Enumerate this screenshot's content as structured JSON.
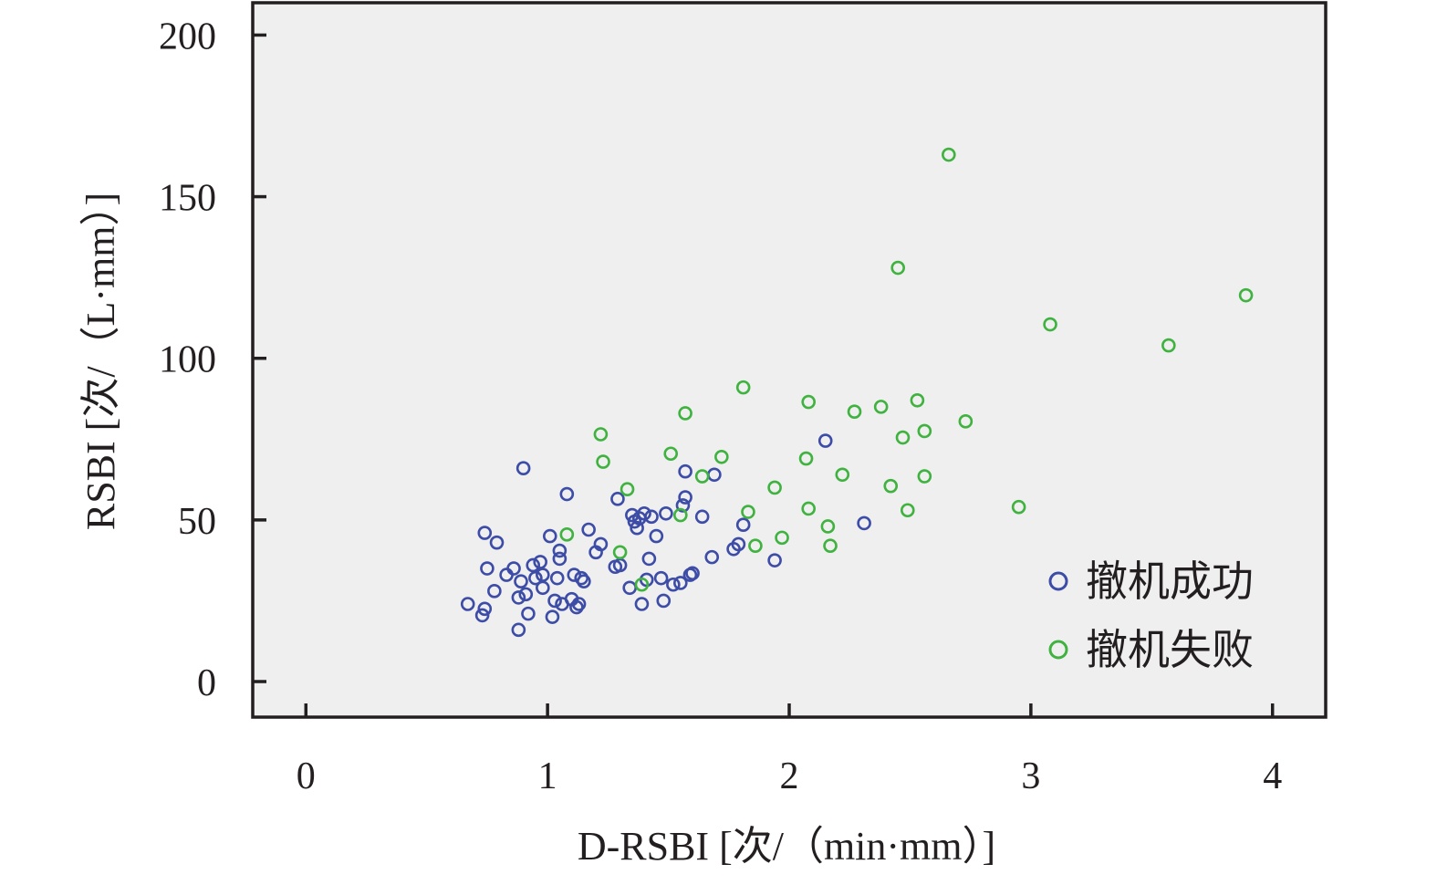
{
  "chart_data": {
    "type": "scatter",
    "xlabel": "D-RSBI [次/（min·mm）]",
    "ylabel": "RSBI [次/（L·mm）]",
    "xlim": [
      -0.22,
      4.22
    ],
    "ylim": [
      -11,
      210
    ],
    "x_ticks": [
      0,
      1,
      2,
      3,
      4
    ],
    "y_ticks": [
      0,
      50,
      100,
      150,
      200
    ],
    "x_tick_labels": [
      "0",
      "1",
      "2",
      "3",
      "4"
    ],
    "y_tick_labels": [
      "0",
      "50",
      "100",
      "150",
      "200"
    ],
    "grid": false,
    "background": "#efefef",
    "legend_position": "bottom-right",
    "series": [
      {
        "name": "撤机成功",
        "color": "#3d4ca6",
        "points": [
          [
            0.67,
            24
          ],
          [
            0.73,
            20.5
          ],
          [
            0.74,
            22.5
          ],
          [
            0.74,
            46
          ],
          [
            0.75,
            35
          ],
          [
            0.78,
            28
          ],
          [
            0.79,
            43
          ],
          [
            0.83,
            33
          ],
          [
            0.86,
            35
          ],
          [
            0.88,
            16
          ],
          [
            0.88,
            26
          ],
          [
            0.89,
            31
          ],
          [
            0.9,
            66
          ],
          [
            0.91,
            27
          ],
          [
            0.92,
            21
          ],
          [
            0.94,
            36
          ],
          [
            0.95,
            32
          ],
          [
            0.97,
            37
          ],
          [
            0.98,
            29
          ],
          [
            0.98,
            33
          ],
          [
            1.01,
            45
          ],
          [
            1.02,
            20
          ],
          [
            1.03,
            25
          ],
          [
            1.04,
            32
          ],
          [
            1.05,
            38
          ],
          [
            1.05,
            40.5
          ],
          [
            1.06,
            24
          ],
          [
            1.08,
            58
          ],
          [
            1.1,
            25.5
          ],
          [
            1.11,
            33
          ],
          [
            1.12,
            23
          ],
          [
            1.13,
            24
          ],
          [
            1.14,
            32
          ],
          [
            1.15,
            31
          ],
          [
            1.17,
            47
          ],
          [
            1.2,
            40
          ],
          [
            1.22,
            42.5
          ],
          [
            1.28,
            35.5
          ],
          [
            1.29,
            56.5
          ],
          [
            1.3,
            36
          ],
          [
            1.34,
            29
          ],
          [
            1.35,
            51.5
          ],
          [
            1.36,
            49.5
          ],
          [
            1.37,
            47.5
          ],
          [
            1.38,
            50.5
          ],
          [
            1.39,
            24
          ],
          [
            1.4,
            52
          ],
          [
            1.41,
            31.5
          ],
          [
            1.42,
            38
          ],
          [
            1.43,
            51
          ],
          [
            1.45,
            45
          ],
          [
            1.47,
            32
          ],
          [
            1.48,
            25
          ],
          [
            1.49,
            52
          ],
          [
            1.52,
            30
          ],
          [
            1.55,
            30.5
          ],
          [
            1.56,
            54.5
          ],
          [
            1.57,
            57
          ],
          [
            1.57,
            65
          ],
          [
            1.59,
            33
          ],
          [
            1.6,
            33.5
          ],
          [
            1.64,
            51
          ],
          [
            1.68,
            38.5
          ],
          [
            1.69,
            64
          ],
          [
            1.77,
            41
          ],
          [
            1.79,
            42.5
          ],
          [
            1.81,
            48.5
          ],
          [
            1.94,
            37.5
          ],
          [
            2.15,
            74.5
          ],
          [
            2.31,
            49
          ]
        ]
      },
      {
        "name": "撤机失败",
        "color": "#3fb23f",
        "points": [
          [
            1.08,
            45.5
          ],
          [
            1.22,
            76.5
          ],
          [
            1.23,
            68
          ],
          [
            1.3,
            40
          ],
          [
            1.33,
            59.5
          ],
          [
            1.39,
            30
          ],
          [
            1.51,
            70.5
          ],
          [
            1.55,
            51.5
          ],
          [
            1.57,
            83
          ],
          [
            1.64,
            63.5
          ],
          [
            1.72,
            69.5
          ],
          [
            1.81,
            91
          ],
          [
            1.83,
            52.5
          ],
          [
            1.86,
            42
          ],
          [
            1.94,
            60
          ],
          [
            1.97,
            44.5
          ],
          [
            2.07,
            69
          ],
          [
            2.08,
            86.5
          ],
          [
            2.08,
            53.5
          ],
          [
            2.16,
            48
          ],
          [
            2.17,
            42
          ],
          [
            2.22,
            64
          ],
          [
            2.27,
            83.5
          ],
          [
            2.38,
            85
          ],
          [
            2.42,
            60.5
          ],
          [
            2.45,
            128
          ],
          [
            2.47,
            75.5
          ],
          [
            2.49,
            53
          ],
          [
            2.53,
            87
          ],
          [
            2.56,
            77.5
          ],
          [
            2.56,
            63.5
          ],
          [
            2.66,
            163
          ],
          [
            2.73,
            80.5
          ],
          [
            2.95,
            54
          ],
          [
            3.08,
            110.5
          ],
          [
            3.57,
            104
          ],
          [
            3.89,
            119.5
          ]
        ]
      }
    ]
  }
}
